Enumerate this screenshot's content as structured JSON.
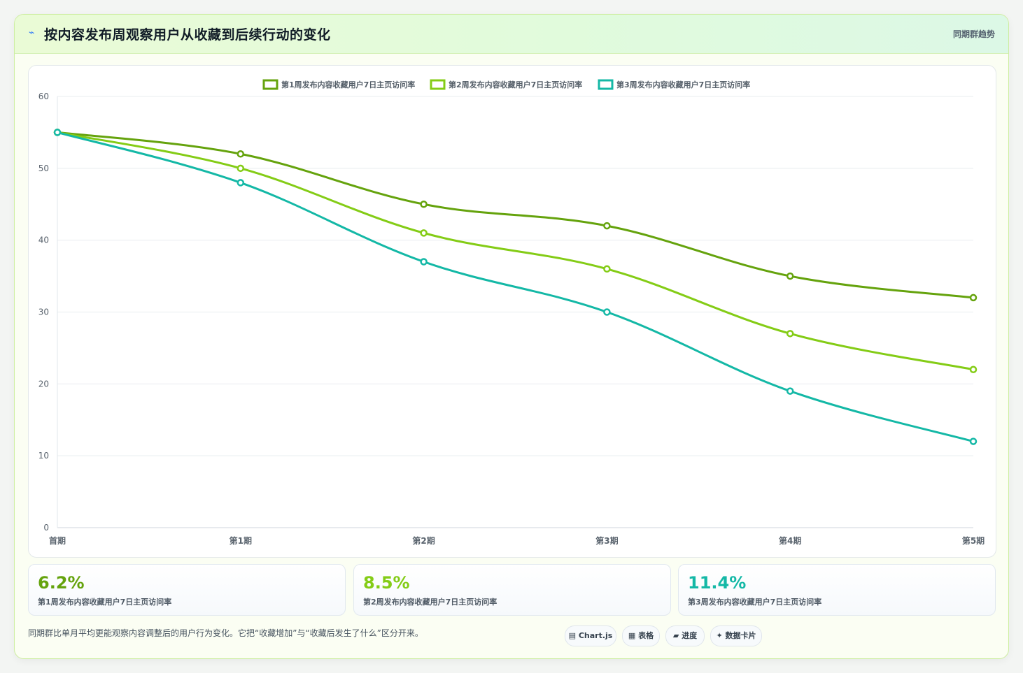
{
  "header": {
    "icon": "trend-line-icon",
    "title": "按内容发布周观察用户从收藏到后续行动的变化",
    "tag": "同期群趋势"
  },
  "chart_data": {
    "type": "line",
    "categories": [
      "首期",
      "第1期",
      "第2期",
      "第3期",
      "第4期",
      "第5期"
    ],
    "ylim": [
      0,
      60
    ],
    "yticks": [
      0,
      10,
      20,
      30,
      40,
      50,
      60
    ],
    "grid": true,
    "legend_position": "top-center",
    "series": [
      {
        "name": "第1周发布内容收藏用户7日主页访问率",
        "color": "#65a30d",
        "values": [
          55,
          52,
          45,
          42,
          35,
          32
        ]
      },
      {
        "name": "第2周发布内容收藏用户7日主页访问率",
        "color": "#84cc16",
        "values": [
          55,
          50,
          41,
          36,
          27,
          22
        ]
      },
      {
        "name": "第3周发布内容收藏用户7日主页访问率",
        "color": "#14b8a6",
        "values": [
          55,
          48,
          37,
          30,
          19,
          12
        ]
      }
    ]
  },
  "stats": [
    {
      "value": "6.2%",
      "label": "第1周发布内容收藏用户7日主页访问率",
      "color": "#65a30d"
    },
    {
      "value": "8.5%",
      "label": "第2周发布内容收藏用户7日主页访问率",
      "color": "#84cc16"
    },
    {
      "value": "11.4%",
      "label": "第3周发布内容收藏用户7日主页访问率",
      "color": "#14b8a6"
    }
  ],
  "footer": {
    "note": "同期群比单月平均更能观察内容调整后的用户行为变化。它把“收藏增加”与“收藏后发生了什么”区分开来。",
    "pills": [
      "▤ Chart.js",
      "▦ 表格",
      "▰ 进度",
      "✦ 数据卡片"
    ]
  }
}
